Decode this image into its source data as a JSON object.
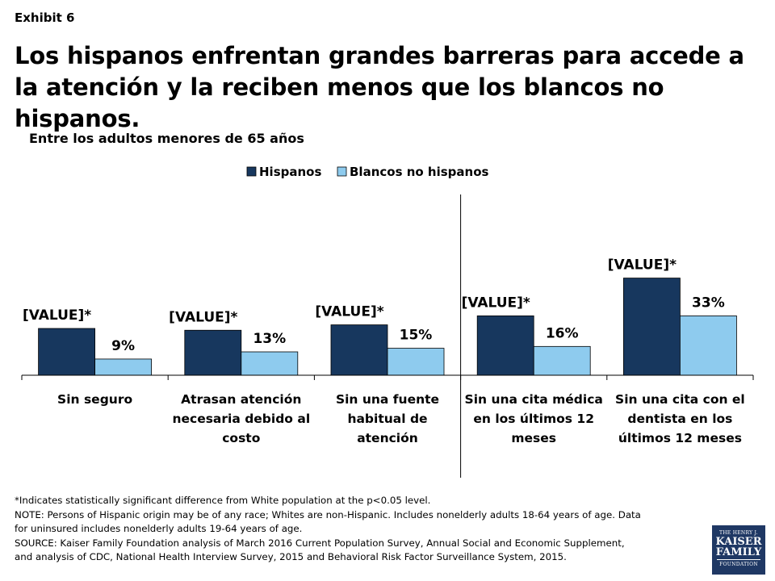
{
  "exhibit_label": "Exhibit 6",
  "chart_data": {
    "type": "bar",
    "title": "Los hispanos enfrentan grandes barreras para accede a la atención y la reciben menos que los blancos no hispanos.",
    "subtitle": "Entre los adultos  menores de 65 años",
    "categories": [
      [
        "Sin seguro"
      ],
      [
        "Atrasan atención",
        "necesaria debido al",
        "costo"
      ],
      [
        "Sin una fuente",
        "habitual de",
        "atención"
      ],
      [
        "Sin una cita médica",
        "en los últimos 12",
        "meses"
      ],
      [
        "Sin una cita con el",
        "dentista en los",
        "últimos 12 meses"
      ]
    ],
    "series": [
      {
        "name": "Hispanos",
        "color": "#17375e",
        "values": [
          26,
          25,
          28,
          33,
          54
        ],
        "data_labels": [
          "[VALUE]*",
          "[VALUE]*",
          "[VALUE]*",
          "[VALUE]*",
          "[VALUE]*"
        ]
      },
      {
        "name": "Blancos no hispanos",
        "color": "#8ecbee",
        "values": [
          9,
          13,
          15,
          16,
          33
        ],
        "data_labels": [
          "9%",
          "13%",
          "15%",
          "16%",
          "33%"
        ]
      }
    ],
    "ylim": [
      0,
      100
    ],
    "divider_after_category": 2,
    "legend_position": "top",
    "grid": false
  },
  "notes": [
    "*Indicates statistically significant difference from White population at the p<0.05 level.",
    "NOTE: Persons of Hispanic origin may be of any race; Whites are non-Hispanic. Includes nonelderly adults 18-64 years of age. Data",
    "for uninsured includes nonelderly adults 19-64 years of age.",
    "SOURCE: Kaiser Family Foundation analysis of March 2016 Current Population Survey, Annual Social and Economic Supplement,",
    "and analysis of CDC, National Health Interview Survey, 2015 and Behavioral Risk Factor Surveillance System, 2015."
  ],
  "logo": {
    "line1": "THE HENRY J.",
    "line2": "KAISER",
    "line3": "FAMILY",
    "line4": "FOUNDATION"
  }
}
